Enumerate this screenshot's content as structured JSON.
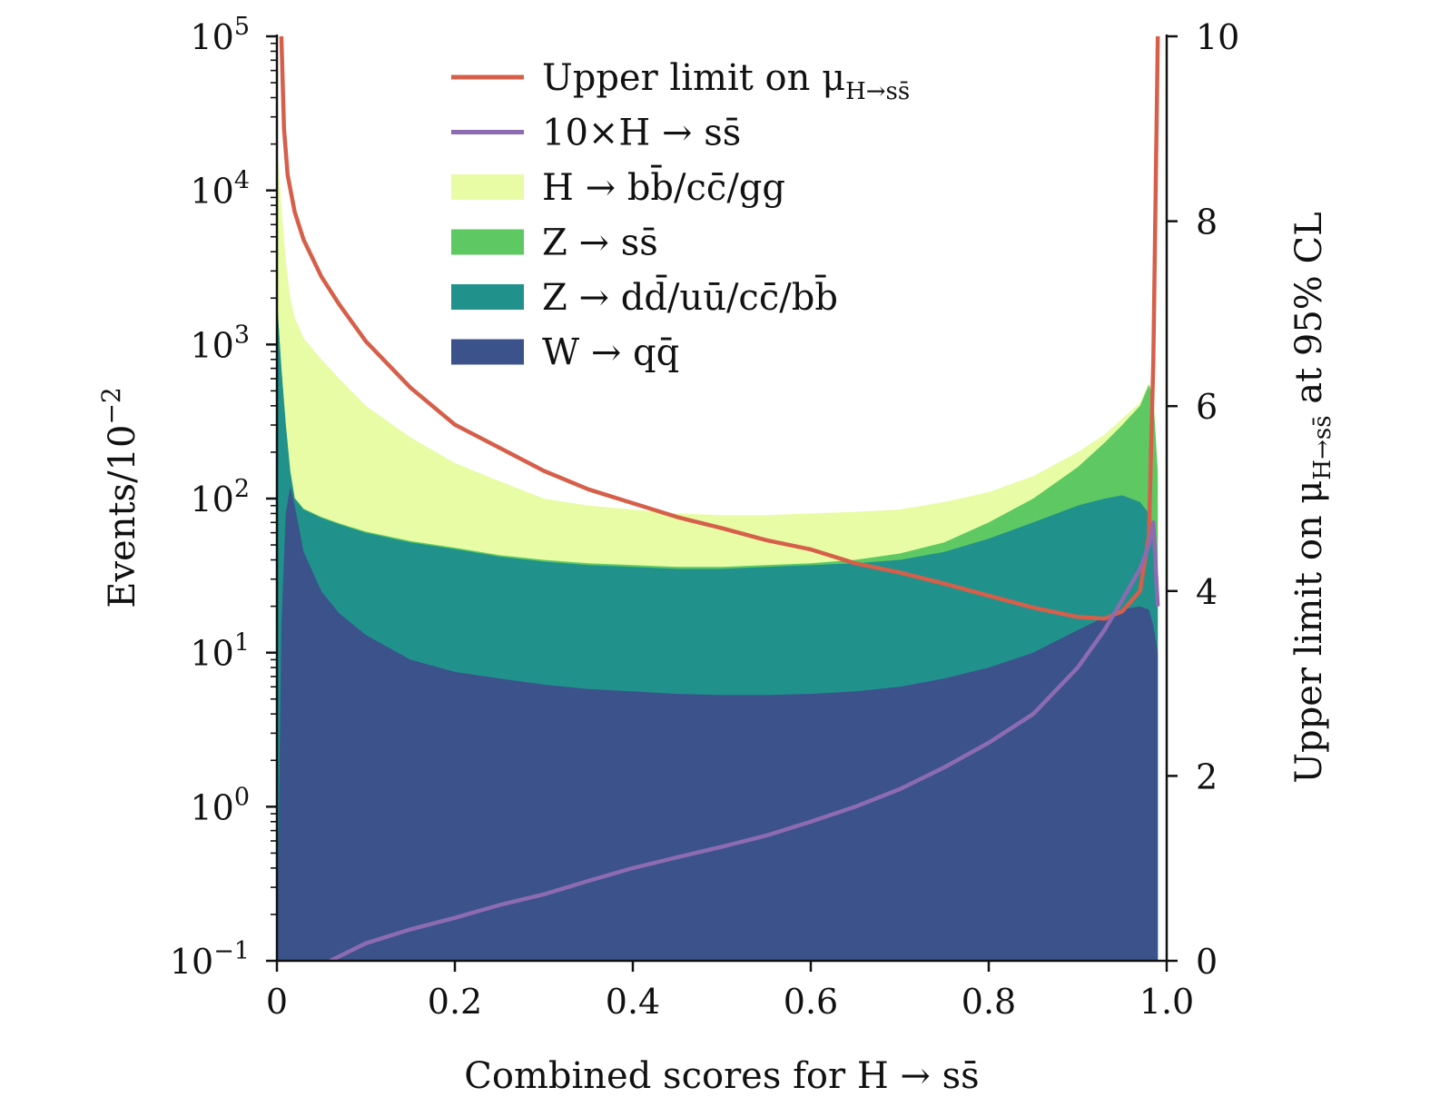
{
  "chart_data": {
    "type": "area",
    "xlabel": "Combined scores for H → ss̄",
    "ylabel_left": "Events/10",
    "ylabel_left_exponent": "−2",
    "ylabel_right": "Upper limit on μ",
    "ylabel_right_subscript": "H→ss̄",
    "ylabel_right_suffix": " at 95% CL",
    "xlim": [
      0,
      1.0
    ],
    "ylim_left_log10": [
      -1,
      5
    ],
    "ylim_right": [
      0,
      10
    ],
    "x_ticks": [
      {
        "value": 0,
        "label": "0"
      },
      {
        "value": 0.2,
        "label": "0.2"
      },
      {
        "value": 0.4,
        "label": "0.4"
      },
      {
        "value": 0.6,
        "label": "0.6"
      },
      {
        "value": 0.8,
        "label": "0.8"
      },
      {
        "value": 1.0,
        "label": "1.0"
      }
    ],
    "y_left_ticks": [
      {
        "exp": -1,
        "base": "10",
        "sup": "−1"
      },
      {
        "exp": 0,
        "base": "10",
        "sup": "0"
      },
      {
        "exp": 1,
        "base": "10",
        "sup": "1"
      },
      {
        "exp": 2,
        "base": "10",
        "sup": "2"
      },
      {
        "exp": 3,
        "base": "10",
        "sup": "3"
      },
      {
        "exp": 4,
        "base": "10",
        "sup": "4"
      },
      {
        "exp": 5,
        "base": "10",
        "sup": "5"
      }
    ],
    "y_right_ticks": [
      {
        "value": 0,
        "label": "0"
      },
      {
        "value": 2,
        "label": "2"
      },
      {
        "value": 4,
        "label": "4"
      },
      {
        "value": 6,
        "label": "6"
      },
      {
        "value": 8,
        "label": "8"
      },
      {
        "value": 10,
        "label": "10"
      }
    ],
    "legend_position": "top-center",
    "x": [
      0.0,
      0.005,
      0.01,
      0.015,
      0.02,
      0.03,
      0.05,
      0.07,
      0.1,
      0.15,
      0.2,
      0.25,
      0.3,
      0.35,
      0.4,
      0.45,
      0.5,
      0.55,
      0.6,
      0.65,
      0.7,
      0.75,
      0.8,
      0.85,
      0.9,
      0.93,
      0.95,
      0.97,
      0.98,
      0.985,
      0.99
    ],
    "stacked_series": [
      {
        "name": "W → qq̄",
        "color": "#3b528b",
        "cumulative_values": [
          0.1,
          15,
          80,
          120,
          90,
          45,
          25,
          18,
          13,
          9,
          7.5,
          6.8,
          6.2,
          5.8,
          5.6,
          5.4,
          5.3,
          5.3,
          5.4,
          5.6,
          6.0,
          6.8,
          8.0,
          10.0,
          14,
          17,
          19,
          20,
          19,
          15,
          10
        ]
      },
      {
        "name": "Z → dd̄/uū/cc̄/bb̄",
        "color": "#21918c",
        "cumulative_values": [
          2000,
          700,
          300,
          150,
          100,
          85,
          75,
          68,
          60,
          52,
          47,
          42,
          39,
          37,
          36,
          35,
          35,
          36,
          37,
          38,
          40,
          45,
          55,
          70,
          90,
          100,
          105,
          95,
          80,
          60,
          20
        ]
      },
      {
        "name": "Z → ss̄",
        "color": "#5ec962",
        "cumulative_values": [
          2020,
          705,
          302,
          151,
          101,
          86,
          76,
          69,
          61,
          53,
          48,
          43,
          40,
          38,
          37,
          36,
          36,
          37,
          38,
          40,
          44,
          52,
          70,
          100,
          160,
          230,
          300,
          400,
          550,
          450,
          150
        ]
      },
      {
        "name": "H → bb̄/cc̄/gg",
        "color": "#e8fca6",
        "cumulative_values": [
          20000,
          8000,
          3500,
          2000,
          1500,
          1100,
          800,
          600,
          400,
          250,
          170,
          130,
          100,
          90,
          85,
          80,
          78,
          78,
          80,
          82,
          85,
          95,
          110,
          140,
          200,
          260,
          330,
          420,
          560,
          460,
          150
        ]
      }
    ],
    "line_series": [
      {
        "name": "Upper limit on μH→ss̄",
        "axis": "right",
        "color": "#d65f4a",
        "x": [
          0.005,
          0.008,
          0.012,
          0.02,
          0.03,
          0.05,
          0.07,
          0.1,
          0.15,
          0.2,
          0.25,
          0.3,
          0.35,
          0.4,
          0.45,
          0.5,
          0.55,
          0.6,
          0.65,
          0.7,
          0.75,
          0.8,
          0.85,
          0.9,
          0.93,
          0.95,
          0.97,
          0.98,
          0.985,
          0.99
        ],
        "values": [
          10.0,
          9.0,
          8.5,
          8.1,
          7.8,
          7.4,
          7.1,
          6.7,
          6.2,
          5.8,
          5.55,
          5.3,
          5.1,
          4.95,
          4.8,
          4.68,
          4.55,
          4.45,
          4.3,
          4.2,
          4.08,
          3.95,
          3.82,
          3.72,
          3.7,
          3.78,
          4.0,
          4.6,
          6.5,
          10.0
        ]
      },
      {
        "name": "10×H → ss̄",
        "axis": "left",
        "color": "#8c6bb1",
        "x": [
          0.06,
          0.1,
          0.15,
          0.2,
          0.25,
          0.3,
          0.35,
          0.4,
          0.45,
          0.5,
          0.55,
          0.6,
          0.65,
          0.7,
          0.75,
          0.8,
          0.85,
          0.9,
          0.93,
          0.95,
          0.97,
          0.98,
          0.985,
          0.99
        ],
        "values": [
          0.1,
          0.13,
          0.16,
          0.19,
          0.23,
          0.27,
          0.33,
          0.4,
          0.47,
          0.55,
          0.65,
          0.8,
          1.0,
          1.3,
          1.8,
          2.6,
          4.0,
          8.0,
          14,
          22,
          35,
          50,
          70,
          20
        ]
      }
    ],
    "legend": [
      {
        "label": "Upper limit on μ",
        "sub": "H→ss̄",
        "type": "line",
        "color": "#d65f4a"
      },
      {
        "label": "10×H → ss̄",
        "sub": "",
        "type": "line",
        "color": "#8c6bb1"
      },
      {
        "label": "H → bb̄/cc̄/gg",
        "sub": "",
        "type": "patch",
        "color": "#e8fca6"
      },
      {
        "label": "Z → ss̄",
        "sub": "",
        "type": "patch",
        "color": "#5ec962"
      },
      {
        "label": "Z → dd̄/uū/cc̄/bb̄",
        "sub": "",
        "type": "patch",
        "color": "#21918c"
      },
      {
        "label": "W → qq̄",
        "sub": "",
        "type": "patch",
        "color": "#3b528b"
      }
    ]
  }
}
